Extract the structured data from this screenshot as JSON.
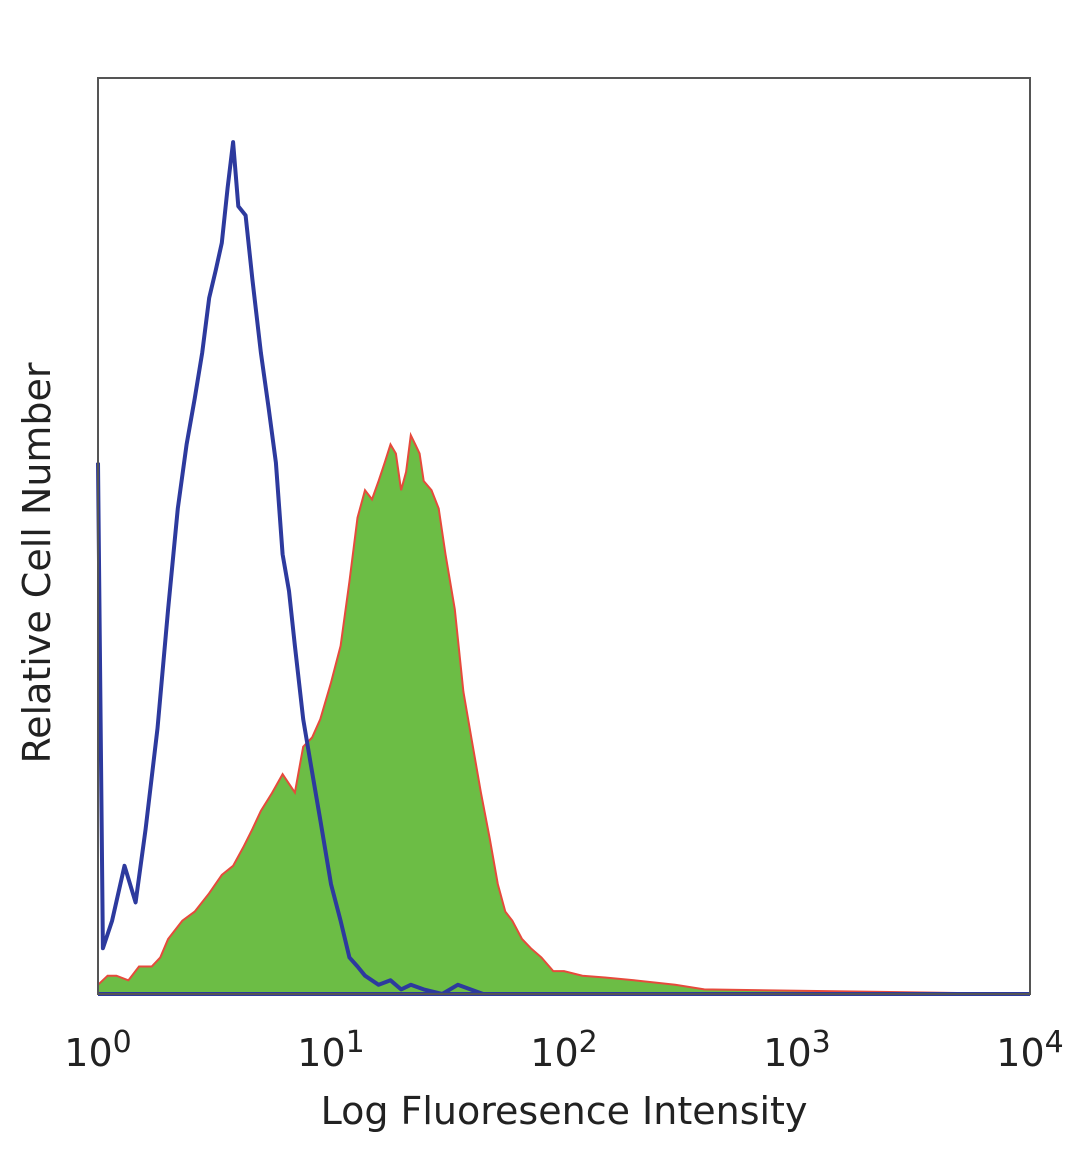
{
  "chart_data": {
    "type": "area",
    "title": "",
    "xlabel": "Log Fluoresence Intensity",
    "ylabel": "Relative Cell Number",
    "x_scale": "log",
    "xlim": [
      1,
      10000
    ],
    "ylim": [
      0,
      1
    ],
    "grid": false,
    "x_ticks": [
      {
        "value": 1,
        "base": "10",
        "exp": "0"
      },
      {
        "value": 10,
        "base": "10",
        "exp": "1"
      },
      {
        "value": 100,
        "base": "10",
        "exp": "2"
      },
      {
        "value": 1000,
        "base": "10",
        "exp": "3"
      },
      {
        "value": 10000,
        "base": "10",
        "exp": "4"
      }
    ],
    "series": [
      {
        "style": "line",
        "color": "#2d3a9e",
        "x": [
          1,
          1.05,
          1.15,
          1.3,
          1.45,
          1.6,
          1.8,
          2.0,
          2.2,
          2.4,
          2.6,
          2.8,
          3.0,
          3.2,
          3.4,
          3.6,
          3.8,
          4.0,
          4.3,
          4.6,
          5.0,
          5.4,
          5.8,
          6.2,
          6.6,
          7.0,
          7.6,
          8.2,
          9.0,
          10,
          11,
          12,
          13,
          14,
          16,
          18,
          20,
          22,
          25,
          30,
          35,
          45,
          60,
          100,
          1000,
          10000
        ],
        "y": [
          0.58,
          0.05,
          0.08,
          0.14,
          0.1,
          0.18,
          0.29,
          0.42,
          0.53,
          0.6,
          0.65,
          0.7,
          0.76,
          0.79,
          0.82,
          0.88,
          0.93,
          0.86,
          0.85,
          0.78,
          0.7,
          0.64,
          0.58,
          0.48,
          0.44,
          0.38,
          0.3,
          0.25,
          0.19,
          0.12,
          0.08,
          0.04,
          0.03,
          0.02,
          0.01,
          0.015,
          0.005,
          0.01,
          0.005,
          0.0,
          0.01,
          0.0,
          0.0,
          0.0,
          0.0,
          0.0
        ]
      },
      {
        "style": "filled",
        "color": "#6cbd45",
        "edge_color": "#e64a3c",
        "x": [
          1.0,
          1.1,
          1.2,
          1.35,
          1.5,
          1.7,
          1.85,
          2.0,
          2.3,
          2.6,
          3.0,
          3.4,
          3.8,
          4.2,
          4.6,
          5.0,
          5.6,
          6.2,
          7.0,
          7.6,
          8.3,
          9.0,
          10,
          11,
          12,
          13,
          14,
          15,
          16,
          17,
          18,
          19,
          20,
          21,
          22,
          23,
          24,
          25,
          27,
          29,
          31,
          34,
          37,
          40,
          44,
          48,
          52,
          56,
          60,
          66,
          72,
          80,
          90,
          100,
          120,
          150,
          200,
          300,
          400,
          10000
        ],
        "y": [
          0.01,
          0.02,
          0.02,
          0.015,
          0.03,
          0.03,
          0.04,
          0.06,
          0.08,
          0.09,
          0.11,
          0.13,
          0.14,
          0.16,
          0.18,
          0.2,
          0.22,
          0.24,
          0.22,
          0.27,
          0.28,
          0.3,
          0.34,
          0.38,
          0.45,
          0.52,
          0.55,
          0.54,
          0.56,
          0.58,
          0.6,
          0.59,
          0.55,
          0.57,
          0.61,
          0.6,
          0.59,
          0.56,
          0.55,
          0.53,
          0.48,
          0.42,
          0.33,
          0.28,
          0.22,
          0.17,
          0.12,
          0.09,
          0.08,
          0.06,
          0.05,
          0.04,
          0.025,
          0.025,
          0.02,
          0.018,
          0.015,
          0.01,
          0.005,
          0.0
        ]
      }
    ]
  }
}
